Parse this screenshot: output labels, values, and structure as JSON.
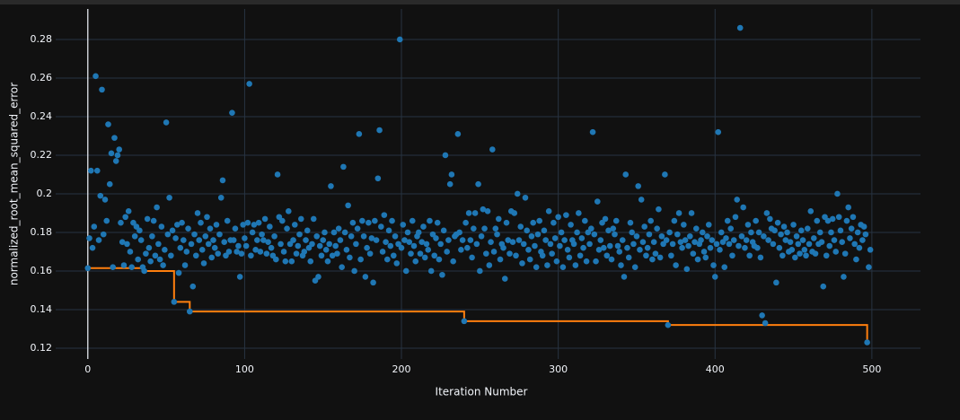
{
  "chart_data": {
    "type": "scatter",
    "x_label": "Iteration Number",
    "y_label": "normalized_root_mean_squared_error",
    "xlim": [
      -20.5,
      531
    ],
    "ylim": [
      0.1144,
      0.2958
    ],
    "xticks": [
      0,
      100,
      200,
      300,
      400,
      500
    ],
    "yticks": [
      0.12,
      0.14,
      0.16,
      0.18,
      0.2,
      0.22,
      0.24,
      0.26,
      0.28
    ],
    "grid": true,
    "zeroline": true,
    "series": [
      {
        "color": "#1f77b4",
        "mode": "markers",
        "x": [
          0,
          1,
          2,
          3,
          4,
          5,
          6,
          7,
          8,
          9,
          10,
          11,
          12,
          13,
          14,
          15,
          16,
          17,
          18,
          19,
          20,
          21,
          22,
          23,
          24,
          25,
          26,
          27,
          28,
          29,
          30,
          31,
          32,
          33,
          34,
          35,
          36,
          37,
          38,
          39,
          40,
          41,
          42,
          43,
          44,
          45,
          46,
          47,
          48,
          49,
          50,
          51,
          52,
          53,
          54,
          55,
          56,
          57,
          58,
          59,
          60,
          61,
          62,
          63,
          64,
          65,
          66,
          67,
          68,
          69,
          70,
          71,
          72,
          73,
          74,
          75,
          76,
          77,
          78,
          79,
          80,
          81,
          82,
          83,
          84,
          85,
          86,
          87,
          88,
          89,
          90,
          91,
          92,
          93,
          94,
          95,
          96,
          97,
          98,
          99,
          100,
          101,
          102,
          103,
          104,
          105,
          106,
          107,
          108,
          109,
          110,
          111,
          112,
          113,
          114,
          115,
          116,
          117,
          118,
          119,
          120,
          121,
          122,
          123,
          124,
          125,
          126,
          127,
          128,
          129,
          130,
          131,
          132,
          133,
          134,
          135,
          136,
          137,
          138,
          139,
          140,
          141,
          142,
          143,
          144,
          145,
          146,
          147,
          148,
          149,
          150,
          151,
          152,
          153,
          154,
          155,
          156,
          157,
          158,
          159,
          160,
          161,
          162,
          163,
          164,
          165,
          166,
          167,
          168,
          169,
          170,
          171,
          172,
          173,
          174,
          175,
          176,
          177,
          178,
          179,
          180,
          181,
          182,
          183,
          184,
          185,
          186,
          187,
          188,
          189,
          190,
          191,
          192,
          193,
          194,
          195,
          196,
          197,
          198,
          199,
          200,
          201,
          202,
          203,
          204,
          205,
          206,
          207,
          208,
          209,
          210,
          211,
          212,
          213,
          214,
          215,
          216,
          217,
          218,
          219,
          220,
          221,
          222,
          223,
          224,
          225,
          226,
          227,
          228,
          229,
          230,
          231,
          232,
          233,
          234,
          235,
          236,
          237,
          238,
          239,
          240,
          241,
          242,
          243,
          244,
          245,
          246,
          247,
          248,
          249,
          250,
          251,
          252,
          253,
          254,
          255,
          256,
          257,
          258,
          259,
          260,
          261,
          262,
          263,
          264,
          265,
          266,
          267,
          268,
          269,
          270,
          271,
          272,
          273,
          274,
          275,
          276,
          277,
          278,
          279,
          280,
          281,
          282,
          283,
          284,
          285,
          286,
          287,
          288,
          289,
          290,
          291,
          292,
          293,
          294,
          295,
          296,
          297,
          298,
          299,
          300,
          301,
          302,
          303,
          304,
          305,
          306,
          307,
          308,
          309,
          310,
          311,
          312,
          313,
          314,
          315,
          316,
          317,
          318,
          319,
          320,
          321,
          322,
          323,
          324,
          325,
          326,
          327,
          328,
          329,
          330,
          331,
          332,
          333,
          334,
          335,
          336,
          337,
          338,
          339,
          340,
          341,
          342,
          343,
          344,
          345,
          346,
          347,
          348,
          349,
          350,
          351,
          352,
          353,
          354,
          355,
          356,
          357,
          358,
          359,
          360,
          361,
          362,
          363,
          364,
          365,
          366,
          367,
          368,
          369,
          370,
          371,
          372,
          373,
          374,
          375,
          376,
          377,
          378,
          379,
          380,
          381,
          382,
          383,
          384,
          385,
          386,
          387,
          388,
          389,
          390,
          391,
          392,
          393,
          394,
          395,
          396,
          397,
          398,
          399,
          400,
          401,
          402,
          403,
          404,
          405,
          406,
          407,
          408,
          409,
          410,
          411,
          412,
          413,
          414,
          415,
          416,
          417,
          418,
          419,
          420,
          421,
          422,
          423,
          424,
          425,
          426,
          427,
          428,
          429,
          430,
          431,
          432,
          433,
          434,
          435,
          436,
          437,
          438,
          439,
          440,
          441,
          442,
          443,
          444,
          445,
          446,
          447,
          448,
          449,
          450,
          451,
          452,
          453,
          454,
          455,
          456,
          457,
          458,
          459,
          460,
          461,
          462,
          463,
          464,
          465,
          466,
          467,
          468,
          469,
          470,
          471,
          472,
          473,
          474,
          475,
          476,
          477,
          478,
          479,
          480,
          481,
          482,
          483,
          484,
          485,
          486,
          487,
          488,
          489,
          490,
          491,
          492,
          493,
          494,
          495,
          496,
          497,
          498,
          499
        ],
        "values": [
          0.1615,
          0.177,
          0.212,
          0.172,
          0.183,
          0.261,
          0.212,
          0.176,
          0.199,
          0.254,
          0.179,
          0.197,
          0.186,
          0.236,
          0.205,
          0.221,
          0.162,
          0.229,
          0.217,
          0.22,
          0.223,
          0.185,
          0.175,
          0.163,
          0.188,
          0.174,
          0.191,
          0.17,
          0.162,
          0.185,
          0.178,
          0.183,
          0.166,
          0.181,
          0.176,
          0.162,
          0.16,
          0.169,
          0.187,
          0.172,
          0.165,
          0.178,
          0.186,
          0.168,
          0.193,
          0.174,
          0.166,
          0.183,
          0.163,
          0.171,
          0.237,
          0.179,
          0.198,
          0.168,
          0.181,
          0.144,
          0.177,
          0.184,
          0.159,
          0.172,
          0.185,
          0.176,
          0.163,
          0.17,
          0.182,
          0.139,
          0.174,
          0.152,
          0.179,
          0.168,
          0.19,
          0.176,
          0.185,
          0.171,
          0.164,
          0.178,
          0.188,
          0.174,
          0.182,
          0.167,
          0.176,
          0.172,
          0.184,
          0.169,
          0.179,
          0.198,
          0.207,
          0.175,
          0.168,
          0.186,
          0.17,
          0.176,
          0.242,
          0.176,
          0.182,
          0.17,
          0.173,
          0.157,
          0.169,
          0.184,
          0.177,
          0.173,
          0.185,
          0.257,
          0.168,
          0.18,
          0.184,
          0.171,
          0.176,
          0.185,
          0.17,
          0.179,
          0.176,
          0.187,
          0.169,
          0.175,
          0.183,
          0.172,
          0.168,
          0.178,
          0.166,
          0.21,
          0.188,
          0.174,
          0.186,
          0.17,
          0.165,
          0.182,
          0.191,
          0.174,
          0.165,
          0.176,
          0.184,
          0.169,
          0.173,
          0.179,
          0.187,
          0.168,
          0.17,
          0.176,
          0.181,
          0.172,
          0.165,
          0.174,
          0.187,
          0.155,
          0.178,
          0.157,
          0.173,
          0.168,
          0.176,
          0.18,
          0.171,
          0.165,
          0.174,
          0.204,
          0.168,
          0.18,
          0.173,
          0.169,
          0.182,
          0.176,
          0.162,
          0.214,
          0.18,
          0.171,
          0.194,
          0.167,
          0.178,
          0.185,
          0.16,
          0.174,
          0.182,
          0.231,
          0.166,
          0.186,
          0.178,
          0.157,
          0.172,
          0.185,
          0.169,
          0.177,
          0.154,
          0.186,
          0.176,
          0.208,
          0.233,
          0.183,
          0.17,
          0.189,
          0.175,
          0.166,
          0.181,
          0.173,
          0.186,
          0.168,
          0.178,
          0.164,
          0.174,
          0.28,
          0.172,
          0.184,
          0.176,
          0.16,
          0.18,
          0.175,
          0.169,
          0.186,
          0.173,
          0.165,
          0.178,
          0.18,
          0.169,
          0.175,
          0.183,
          0.167,
          0.174,
          0.171,
          0.186,
          0.16,
          0.179,
          0.168,
          0.177,
          0.185,
          0.166,
          0.174,
          0.158,
          0.181,
          0.22,
          0.17,
          0.176,
          0.205,
          0.21,
          0.165,
          0.178,
          0.179,
          0.231,
          0.18,
          0.171,
          0.176,
          0.134,
          0.185,
          0.172,
          0.19,
          0.176,
          0.167,
          0.182,
          0.19,
          0.174,
          0.205,
          0.16,
          0.178,
          0.192,
          0.182,
          0.169,
          0.191,
          0.163,
          0.175,
          0.223,
          0.17,
          0.182,
          0.179,
          0.187,
          0.166,
          0.174,
          0.172,
          0.156,
          0.185,
          0.176,
          0.169,
          0.191,
          0.175,
          0.19,
          0.168,
          0.2,
          0.176,
          0.183,
          0.164,
          0.174,
          0.198,
          0.181,
          0.171,
          0.166,
          0.178,
          0.185,
          0.173,
          0.162,
          0.179,
          0.186,
          0.17,
          0.168,
          0.181,
          0.176,
          0.163,
          0.191,
          0.174,
          0.169,
          0.185,
          0.177,
          0.165,
          0.188,
          0.173,
          0.18,
          0.162,
          0.176,
          0.189,
          0.171,
          0.167,
          0.184,
          0.176,
          0.174,
          0.163,
          0.18,
          0.19,
          0.168,
          0.177,
          0.172,
          0.186,
          0.165,
          0.18,
          0.174,
          0.182,
          0.232,
          0.179,
          0.165,
          0.196,
          0.171,
          0.176,
          0.185,
          0.172,
          0.187,
          0.168,
          0.181,
          0.173,
          0.166,
          0.182,
          0.179,
          0.186,
          0.173,
          0.17,
          0.163,
          0.176,
          0.157,
          0.21,
          0.172,
          0.167,
          0.185,
          0.18,
          0.174,
          0.162,
          0.178,
          0.204,
          0.171,
          0.197,
          0.175,
          0.183,
          0.168,
          0.172,
          0.179,
          0.186,
          0.166,
          0.175,
          0.169,
          0.182,
          0.192,
          0.167,
          0.178,
          0.174,
          0.21,
          0.176,
          0.132,
          0.18,
          0.168,
          0.174,
          0.186,
          0.163,
          0.179,
          0.19,
          0.175,
          0.172,
          0.184,
          0.176,
          0.161,
          0.173,
          0.178,
          0.19,
          0.169,
          0.175,
          0.182,
          0.166,
          0.174,
          0.176,
          0.18,
          0.17,
          0.167,
          0.178,
          0.184,
          0.172,
          0.176,
          0.163,
          0.157,
          0.174,
          0.232,
          0.171,
          0.18,
          0.175,
          0.162,
          0.177,
          0.186,
          0.174,
          0.182,
          0.168,
          0.176,
          0.188,
          0.197,
          0.173,
          0.286,
          0.178,
          0.193,
          0.172,
          0.176,
          0.184,
          0.168,
          0.18,
          0.175,
          0.173,
          0.186,
          0.172,
          0.18,
          0.167,
          0.137,
          0.178,
          0.133,
          0.19,
          0.176,
          0.187,
          0.182,
          0.174,
          0.181,
          0.154,
          0.185,
          0.172,
          0.179,
          0.168,
          0.183,
          0.176,
          0.18,
          0.17,
          0.175,
          0.171,
          0.184,
          0.167,
          0.178,
          0.174,
          0.169,
          0.181,
          0.176,
          0.171,
          0.168,
          0.182,
          0.174,
          0.191,
          0.17,
          0.177,
          0.169,
          0.186,
          0.174,
          0.18,
          0.175,
          0.152,
          0.188,
          0.168,
          0.186,
          0.173,
          0.18,
          0.187,
          0.176,
          0.17,
          0.2,
          0.188,
          0.181,
          0.175,
          0.157,
          0.169,
          0.186,
          0.193,
          0.177,
          0.182,
          0.188,
          0.174,
          0.166,
          0.18,
          0.172,
          0.184,
          0.176,
          0.183,
          0.179,
          0.123,
          0.162,
          0.171
        ]
      },
      {
        "color": "#ff7f0e",
        "mode": "lines",
        "line_shape": "hv",
        "x": [
          0,
          36,
          55,
          65,
          240,
          370,
          497
        ],
        "values": [
          0.1615,
          0.16,
          0.144,
          0.139,
          0.134,
          0.132,
          0.123
        ]
      }
    ]
  }
}
